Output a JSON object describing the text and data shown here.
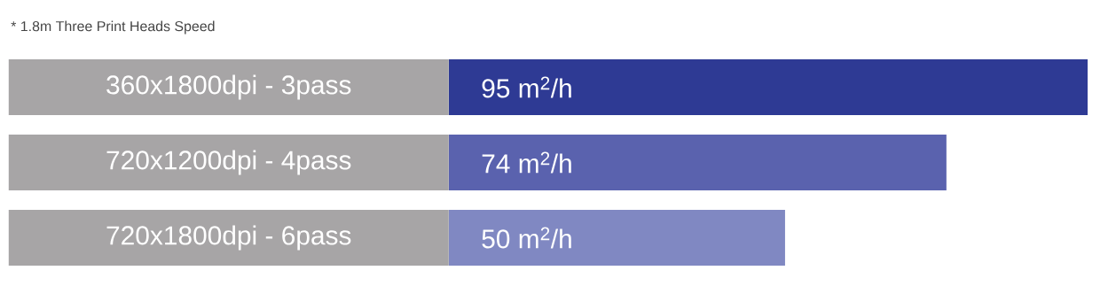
{
  "chart_data": {
    "type": "bar",
    "orientation": "horizontal",
    "title": "* 1.8m Three Print Heads Speed",
    "categories": [
      "360x1800dpi  -  3pass",
      "720x1200dpi -  4pass",
      "720x1800dpi -  6pass"
    ],
    "values": [
      95,
      74,
      50
    ],
    "colors": [
      "#2e3a94",
      "#5a62ae",
      "#8088c2"
    ],
    "value_labels": [
      "95 m$^{2}$/h",
      "74 m$^{2}$/h",
      "50 m$^{2}$/h"
    ]
  }
}
